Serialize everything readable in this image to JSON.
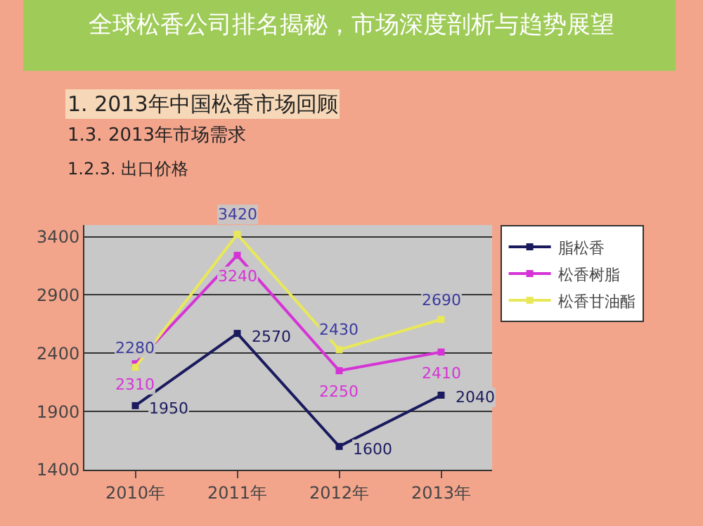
{
  "chart_data": {
    "type": "line",
    "title": "全球松香公司排名揭秘，市场深度剖析与趋势展望",
    "annotations": [
      "1. 2013年中国松香市场回顾",
      "1.3. 2013年市场需求",
      "1.2.3. 出口价格"
    ],
    "categories": [
      "2010年",
      "2011年",
      "2012年",
      "2013年"
    ],
    "series": [
      {
        "name": "脂松香",
        "color": "#1a1a5e",
        "values": [
          1950,
          2570,
          1600,
          2040
        ]
      },
      {
        "name": "松香树脂",
        "color": "#d633d6",
        "values": [
          2310,
          3240,
          2250,
          2410
        ]
      },
      {
        "name": "松香甘油酯",
        "color": "#e8e85a",
        "values": [
          2280,
          3420,
          2430,
          2690
        ]
      }
    ],
    "ylim": [
      1400,
      3500
    ],
    "yticks": [
      1400,
      1900,
      2400,
      2900,
      3400
    ],
    "grid": "y",
    "legend": "right",
    "marker": "square",
    "data_labels": true
  }
}
